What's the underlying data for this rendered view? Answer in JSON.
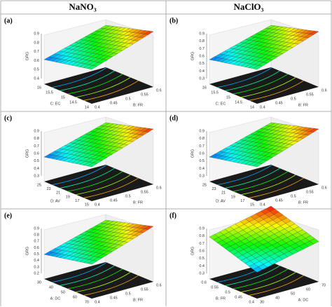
{
  "header": {
    "columns": [
      "NaNO₃",
      "NaClO₃"
    ]
  },
  "panels": [
    {
      "label": "(a)",
      "z_axis": {
        "label": "GRG",
        "ticks": [
          "0.9",
          "0.8",
          "0.7",
          "0.6",
          "0.5",
          "0.4"
        ]
      },
      "left_axis": {
        "label": "C: EC",
        "ticks": [
          "16",
          "15.5",
          "15",
          "14.5",
          "14"
        ]
      },
      "right_axis": {
        "label": "B: FR",
        "ticks": [
          "0.4",
          "0.45",
          "0.5",
          "0.55",
          "0.6"
        ]
      }
    },
    {
      "label": "(b)",
      "z_axis": {
        "label": "GRG",
        "ticks": [
          "0.9",
          "0.8",
          "0.7",
          "0.6",
          "0.5",
          "0.4",
          "0.3"
        ]
      },
      "left_axis": {
        "label": "C: EC",
        "ticks": [
          "16",
          "15.5",
          "15",
          "14.5",
          "14"
        ]
      },
      "right_axis": {
        "label": "B: FR",
        "ticks": [
          "0.4",
          "0.45",
          "0.5",
          "0.55",
          "0.6"
        ]
      }
    },
    {
      "label": "(c)",
      "z_axis": {
        "label": "GRG",
        "ticks": [
          "0.9",
          "0.8",
          "0.7",
          "0.6",
          "0.5",
          "0.4",
          "0.3"
        ]
      },
      "left_axis": {
        "label": "D: AV",
        "ticks": [
          "25",
          "23",
          "21",
          "19",
          "17",
          "15"
        ]
      },
      "right_axis": {
        "label": "B: FR",
        "ticks": [
          "0.4",
          "0.45",
          "0.5",
          "0.55",
          "0.6"
        ]
      }
    },
    {
      "label": "(d)",
      "z_axis": {
        "label": "GRG",
        "ticks": [
          "0.9",
          "0.8",
          "0.7",
          "0.6",
          "0.5",
          "0.4",
          "0.3"
        ]
      },
      "left_axis": {
        "label": "D: AV",
        "ticks": [
          "25",
          "23",
          "21",
          "19",
          "17",
          "15"
        ]
      },
      "right_axis": {
        "label": "B: FR",
        "ticks": [
          "0.4",
          "0.45",
          "0.5",
          "0.55",
          "0.6"
        ]
      }
    },
    {
      "label": "(e)",
      "z_axis": {
        "label": "GRG",
        "ticks": [
          "0.9",
          "0.8",
          "0.7",
          "0.6",
          "0.5",
          "0.4",
          "0.3",
          "0.2"
        ]
      },
      "left_axis": {
        "label": "A: DC",
        "ticks": [
          "30",
          "40",
          "50",
          "60",
          "70"
        ]
      },
      "right_axis": {
        "label": "B: FR",
        "ticks": [
          "0.4",
          "0.45",
          "0.5",
          "0.55",
          "0.6"
        ]
      }
    },
    {
      "label": "(f)",
      "z_axis": {
        "label": "GRG",
        "ticks": [
          "0.9",
          "0.8",
          "0.7",
          "0.6",
          "0.5",
          "0.4",
          "0.3"
        ]
      },
      "left_axis": {
        "label": "B: FR",
        "ticks": [
          "0.6",
          "0.55",
          "0.5",
          "0.45",
          "0.4"
        ]
      },
      "right_axis": {
        "label": "A: DC",
        "ticks": [
          "30",
          "40",
          "50",
          "60",
          "70"
        ]
      }
    }
  ]
}
